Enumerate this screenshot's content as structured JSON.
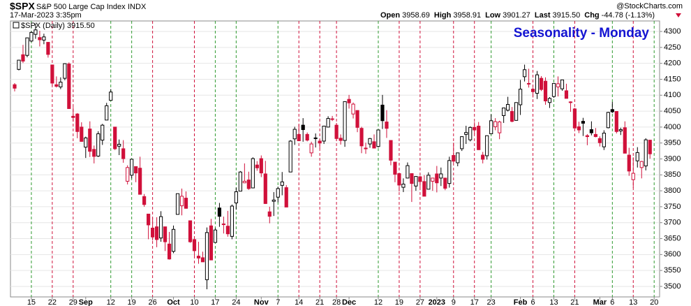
{
  "chart_data": {
    "type": "candlestick",
    "symbol": "$SPX",
    "name": "S&P 500 Large Cap Index",
    "exchange": "INDX",
    "timestamp": "17-Mar-2023 3:35pm",
    "quote": [
      {
        "label": "Open",
        "value": "3958.69"
      },
      {
        "label": "High",
        "value": "3958.91"
      },
      {
        "label": "Low",
        "value": "3901.27"
      },
      {
        "label": "Last",
        "value": "3915.50"
      },
      {
        "label": "Chg",
        "value": "-44.78 (-1.13%)"
      }
    ],
    "source": "@StockCharts.com",
    "legend": "$SPX (Daily) 3915.50",
    "title": "Seasonality - Monday",
    "up_color": "#000000",
    "down_color": "#d0103a",
    "monday_up_color": "#2e9a2e",
    "monday_down_color": "#d0103a",
    "ylim": [
      3467,
      4333
    ],
    "yticks": [
      3500,
      3550,
      3600,
      3650,
      3700,
      3750,
      3800,
      3850,
      3900,
      3950,
      4000,
      4050,
      4100,
      4150,
      4200,
      4250,
      4300
    ],
    "xlim": [
      -1,
      154.3
    ],
    "xticks": [
      {
        "value": 4,
        "label": "15"
      },
      {
        "value": 9,
        "label": "22"
      },
      {
        "value": 14,
        "label": "29"
      },
      {
        "value": 17,
        "label": "Sep"
      },
      {
        "value": 23,
        "label": "12"
      },
      {
        "value": 28,
        "label": "19"
      },
      {
        "value": 33,
        "label": "26"
      },
      {
        "value": 38,
        "label": "Oct"
      },
      {
        "value": 43,
        "label": "10"
      },
      {
        "value": 48,
        "label": "17"
      },
      {
        "value": 53,
        "label": "24"
      },
      {
        "value": 59,
        "label": "Nov"
      },
      {
        "value": 63,
        "label": "7"
      },
      {
        "value": 68,
        "label": "14"
      },
      {
        "value": 73,
        "label": "21"
      },
      {
        "value": 77,
        "label": "28"
      },
      {
        "value": 80,
        "label": "Dec"
      },
      {
        "value": 87,
        "label": "12"
      },
      {
        "value": 92,
        "label": "19"
      },
      {
        "value": 97,
        "label": "27"
      },
      {
        "value": 101,
        "label": "2023"
      },
      {
        "value": 105,
        "label": "9"
      },
      {
        "value": 110,
        "label": "17"
      },
      {
        "value": 114,
        "label": "23"
      },
      {
        "value": 121,
        "label": "Feb"
      },
      {
        "value": 124,
        "label": "6"
      },
      {
        "value": 129,
        "label": "13"
      },
      {
        "value": 134,
        "label": "21"
      },
      {
        "value": 140,
        "label": "Mar"
      },
      {
        "value": 143,
        "label": "6"
      },
      {
        "value": 148,
        "label": "13"
      },
      {
        "value": 153,
        "label": "20"
      }
    ],
    "ohlc": [
      [
        4133,
        4138,
        4112,
        4122
      ],
      [
        4181,
        4211,
        4178,
        4210
      ],
      [
        4227,
        4258,
        4201,
        4207
      ],
      [
        4225,
        4280,
        4219,
        4280
      ],
      [
        4270,
        4301,
        4267,
        4297
      ],
      [
        4291,
        4325,
        4277,
        4305
      ],
      [
        4281,
        4302,
        4253,
        4274
      ],
      [
        4273,
        4293,
        4260,
        4283
      ],
      [
        4266,
        4266,
        4218,
        4228
      ],
      [
        4195,
        4195,
        4129,
        4138
      ],
      [
        4133,
        4159,
        4124,
        4128
      ],
      [
        4126,
        4156,
        4119,
        4141
      ],
      [
        4153,
        4200,
        4147,
        4199
      ],
      [
        4198,
        4203,
        4057,
        4058
      ],
      [
        4034,
        4063,
        4017,
        4030
      ],
      [
        4041,
        4044,
        3965,
        3986
      ],
      [
        4000,
        4015,
        3954,
        3955
      ],
      [
        3937,
        3970,
        3903,
        3966
      ],
      [
        3994,
        4018,
        3906,
        3924
      ],
      [
        3930,
        3942,
        3886,
        3908
      ],
      [
        3909,
        3987,
        3906,
        3979
      ],
      [
        3959,
        4010,
        3944,
        4006
      ],
      [
        4022,
        4076,
        4022,
        4067
      ],
      [
        4084,
        4119,
        4083,
        4110
      ],
      [
        4000,
        4000,
        3928,
        3932
      ],
      [
        3940,
        3961,
        3912,
        3946
      ],
      [
        3932,
        3959,
        3888,
        3901
      ],
      [
        3830,
        3880,
        3820,
        3873
      ],
      [
        3849,
        3900,
        3839,
        3899
      ],
      [
        3876,
        3876,
        3827,
        3856
      ],
      [
        3871,
        3907,
        3789,
        3789
      ],
      [
        3782,
        3790,
        3750,
        3757
      ],
      [
        3727,
        3727,
        3648,
        3693
      ],
      [
        3683,
        3716,
        3644,
        3655
      ],
      [
        3687,
        3717,
        3623,
        3647
      ],
      [
        3652,
        3736,
        3640,
        3719
      ],
      [
        3687,
        3687,
        3611,
        3640
      ],
      [
        3633,
        3671,
        3584,
        3586
      ],
      [
        3610,
        3691,
        3604,
        3679
      ],
      [
        3726,
        3791,
        3726,
        3791
      ],
      [
        3753,
        3807,
        3723,
        3783
      ],
      [
        3777,
        3798,
        3744,
        3745
      ],
      [
        3706,
        3706,
        3637,
        3640
      ],
      [
        3647,
        3653,
        3588,
        3612
      ],
      [
        3595,
        3640,
        3571,
        3589
      ],
      [
        3590,
        3609,
        3577,
        3577
      ],
      [
        3521,
        3685,
        3491,
        3669
      ],
      [
        3690,
        3712,
        3584,
        3583
      ],
      [
        3638,
        3683,
        3638,
        3677
      ],
      [
        3746,
        3762,
        3687,
        3720
      ],
      [
        3696,
        3719,
        3666,
        3695
      ],
      [
        3689,
        3737,
        3656,
        3665
      ],
      [
        3657,
        3757,
        3648,
        3752
      ],
      [
        3762,
        3810,
        3741,
        3797
      ],
      [
        3799,
        3862,
        3799,
        3859
      ],
      [
        3825,
        3886,
        3824,
        3830
      ],
      [
        3834,
        3860,
        3803,
        3807
      ],
      [
        3809,
        3905,
        3808,
        3901
      ],
      [
        3881,
        3893,
        3863,
        3872
      ],
      [
        3901,
        3911,
        3843,
        3856
      ],
      [
        3853,
        3894,
        3759,
        3760
      ],
      [
        3734,
        3750,
        3698,
        3720
      ],
      [
        3767,
        3796,
        3721,
        3771
      ],
      [
        3780,
        3813,
        3764,
        3807
      ],
      [
        3817,
        3859,
        3786,
        3828
      ],
      [
        3810,
        3818,
        3749,
        3749
      ],
      [
        3859,
        3959,
        3859,
        3956
      ],
      [
        3963,
        4001,
        3944,
        3993
      ],
      [
        3977,
        4008,
        3957,
        3957
      ],
      [
        4006,
        4028,
        3954,
        3992
      ],
      [
        3977,
        3983,
        3955,
        3959
      ],
      [
        3919,
        3954,
        3907,
        3947
      ],
      [
        3966,
        3980,
        3936,
        3965
      ],
      [
        3956,
        3962,
        3933,
        3950
      ],
      [
        3956,
        4004,
        3947,
        4003
      ],
      [
        4000,
        4034,
        3999,
        4027
      ],
      [
        4024,
        4035,
        4019,
        4026
      ],
      [
        4006,
        4013,
        3956,
        3964
      ],
      [
        3965,
        3977,
        3945,
        3958
      ],
      [
        3958,
        4080,
        3938,
        4080
      ],
      [
        4087,
        4101,
        4058,
        4076
      ],
      [
        4041,
        4077,
        4027,
        4072
      ],
      [
        4052,
        4052,
        3984,
        3999
      ],
      [
        3996,
        4001,
        3918,
        3941
      ],
      [
        3934,
        3951,
        3916,
        3933
      ],
      [
        3947,
        3966,
        3935,
        3964
      ],
      [
        3954,
        3977,
        3933,
        3934
      ],
      [
        3939,
        3991,
        3936,
        3991
      ],
      [
        4069,
        4101,
        3994,
        4020
      ],
      [
        4016,
        4053,
        3966,
        3996
      ],
      [
        3958,
        3958,
        3880,
        3896
      ],
      [
        3890,
        3890,
        3827,
        3852
      ],
      [
        3854,
        3855,
        3798,
        3818
      ],
      [
        3811,
        3839,
        3796,
        3821
      ],
      [
        3840,
        3889,
        3839,
        3879
      ],
      [
        3854,
        3854,
        3765,
        3823
      ],
      [
        3815,
        3846,
        3800,
        3845
      ],
      [
        3844,
        3847,
        3811,
        3829
      ],
      [
        3829,
        3849,
        3783,
        3783
      ],
      [
        3805,
        3858,
        3805,
        3849
      ],
      [
        3830,
        3840,
        3800,
        3840
      ],
      [
        3853,
        3878,
        3795,
        3825
      ],
      [
        3840,
        3873,
        3815,
        3853
      ],
      [
        3840,
        3840,
        3802,
        3808
      ],
      [
        3823,
        3907,
        3810,
        3895
      ],
      [
        3911,
        3951,
        3888,
        3893
      ],
      [
        3888,
        3919,
        3877,
        3919
      ],
      [
        3932,
        3970,
        3925,
        3970
      ],
      [
        3977,
        4004,
        3947,
        3983
      ],
      [
        3960,
        4002,
        3955,
        3999
      ],
      [
        3999,
        4016,
        3977,
        3991
      ],
      [
        4003,
        4016,
        3928,
        3929
      ],
      [
        3912,
        3922,
        3886,
        3899
      ],
      [
        3910,
        3973,
        3898,
        3973
      ],
      [
        3979,
        4040,
        3979,
        4020
      ],
      [
        4001,
        4028,
        3990,
        4017
      ],
      [
        3982,
        4020,
        3962,
        4016
      ],
      [
        4036,
        4061,
        4013,
        4060
      ],
      [
        4053,
        4095,
        4049,
        4071
      ],
      [
        4049,
        4063,
        4015,
        4018
      ],
      [
        4021,
        4077,
        4020,
        4077
      ],
      [
        4070,
        4148,
        4038,
        4119
      ],
      [
        4158,
        4196,
        4143,
        4180
      ],
      [
        4137,
        4183,
        4124,
        4136
      ],
      [
        4119,
        4124,
        4093,
        4111
      ],
      [
        4106,
        4176,
        4088,
        4164
      ],
      [
        4153,
        4160,
        4113,
        4118
      ],
      [
        4144,
        4156,
        4070,
        4082
      ],
      [
        4077,
        4094,
        4060,
        4090
      ],
      [
        4096,
        4138,
        4092,
        4137
      ],
      [
        4126,
        4159,
        4096,
        4136
      ],
      [
        4120,
        4148,
        4114,
        4148
      ],
      [
        4114,
        4136,
        4091,
        4090
      ],
      [
        4078,
        4081,
        4048,
        4079
      ],
      [
        4057,
        4060,
        3997,
        3997
      ],
      [
        4001,
        4017,
        3981,
        3991
      ],
      [
        4018,
        4029,
        3972,
        4012
      ],
      [
        3973,
        3978,
        3943,
        3970
      ],
      [
        3992,
        4018,
        3974,
        3982
      ],
      [
        3977,
        3997,
        3968,
        3970
      ],
      [
        3964,
        3971,
        3939,
        3951
      ],
      [
        3938,
        3990,
        3928,
        3981
      ],
      [
        3998,
        4048,
        3996,
        4046
      ],
      [
        4055,
        4079,
        4044,
        4048
      ],
      [
        4049,
        4050,
        3980,
        3986
      ],
      [
        3988,
        3998,
        3975,
        3992
      ],
      [
        3998,
        4018,
        3918,
        3918
      ],
      [
        3912,
        3935,
        3847,
        3862
      ],
      [
        3835,
        3905,
        3809,
        3855
      ],
      [
        3894,
        3937,
        3873,
        3920
      ],
      [
        3873,
        3894,
        3839,
        3892
      ],
      [
        3878,
        3965,
        3864,
        3960
      ],
      [
        3959,
        3959,
        3901,
        3916
      ]
    ]
  }
}
